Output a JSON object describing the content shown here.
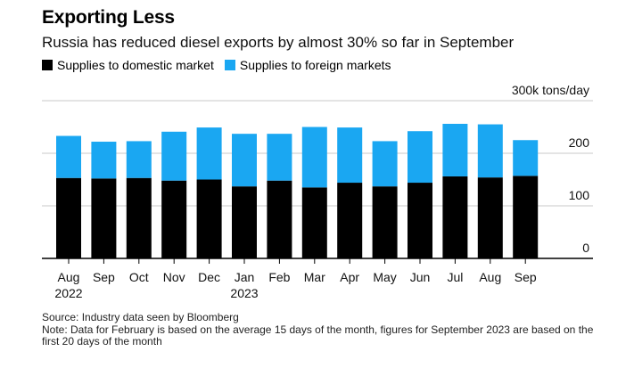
{
  "title": "Exporting Less",
  "subtitle": "Russia has reduced diesel exports by almost 30% so far in September",
  "legend": {
    "domestic": "Supplies to domestic market",
    "foreign": "Supplies to foreign markets"
  },
  "colors": {
    "domestic": "#000000",
    "foreign": "#1aa7f2",
    "axis": "#000000",
    "grid": "#c8c8c8"
  },
  "notes": {
    "source": "Source: Industry data seen by Bloomberg",
    "note": "Note: Data for February is based on the average 15 days of the month, figures for September 2023 are based on the first 20 days of the month"
  },
  "chart_data": {
    "type": "bar",
    "stacked": true,
    "unit_label": "300k tons/day",
    "ylim": [
      0,
      300
    ],
    "yticks": [
      0,
      100,
      200,
      300
    ],
    "ytick_labels": [
      "0",
      "100",
      "200",
      "300k tons/day"
    ],
    "categories": [
      "Aug",
      "Sep",
      "Oct",
      "Nov",
      "Dec",
      "Jan",
      "Feb",
      "Mar",
      "Apr",
      "May",
      "Jun",
      "Jul",
      "Aug",
      "Sep"
    ],
    "year_labels": [
      "2022",
      "",
      "",
      "",
      "",
      "2023",
      "",
      "",
      "",
      "",
      "",
      "",
      "",
      ""
    ],
    "series": [
      {
        "name": "Supplies to domestic market",
        "values": [
          153,
          152,
          153,
          148,
          150,
          137,
          148,
          135,
          144,
          137,
          144,
          156,
          154,
          157
        ]
      },
      {
        "name": "Supplies to foreign markets",
        "values": [
          80,
          70,
          70,
          93,
          99,
          100,
          89,
          115,
          105,
          86,
          98,
          100,
          101,
          68
        ]
      }
    ]
  }
}
